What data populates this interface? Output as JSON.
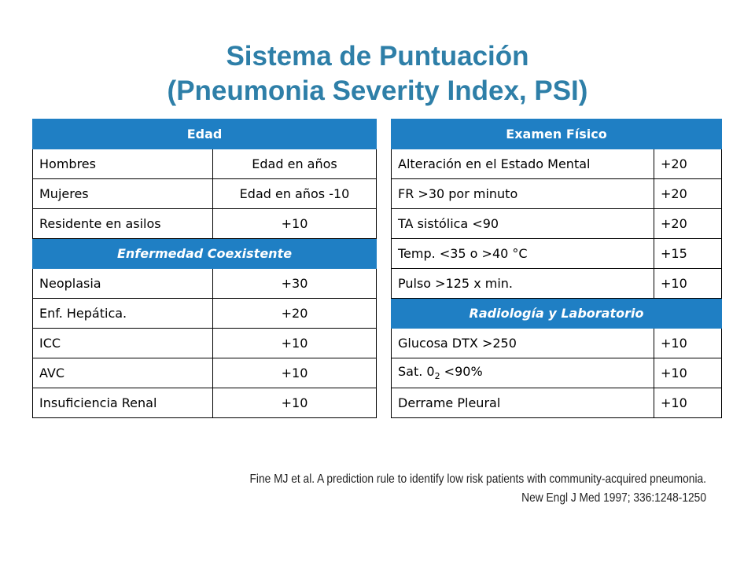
{
  "title": {
    "line1": "Sistema de Puntuación",
    "line2": "(Pneumonia Severity Index, PSI)"
  },
  "left_table": {
    "edad_header": "Edad",
    "edad_rows": [
      {
        "label": "Hombres",
        "value": "Edad en años"
      },
      {
        "label": "Mujeres",
        "value": "Edad en años -10"
      },
      {
        "label": "Residente en asilos",
        "value": "+10"
      }
    ],
    "coexist_header": "Enfermedad Coexistente",
    "coexist_rows": [
      {
        "label": "Neoplasia",
        "value": "+30"
      },
      {
        "label": "Enf. Hepática.",
        "value": "+20"
      },
      {
        "label": "ICC",
        "value": "+10"
      },
      {
        "label": "AVC",
        "value": "+10"
      },
      {
        "label": "Insuficiencia Renal",
        "value": "+10"
      }
    ]
  },
  "right_table": {
    "exam_header": "Examen Físico",
    "exam_rows": [
      {
        "label": "Alteración en el Estado Mental",
        "value": "+20"
      },
      {
        "label": "FR >30 por minuto",
        "value": "+20"
      },
      {
        "label": "TA sistólica <90",
        "value": "+20"
      },
      {
        "label": "Temp. <35 o >40 °C",
        "value": "+15"
      },
      {
        "label": "Pulso >125 x min.",
        "value": "+10"
      }
    ],
    "lab_header": "Radiología y Laboratorio",
    "lab_rows": [
      {
        "label": "Glucosa DTX >250",
        "value": "+10"
      },
      {
        "label_pre": "Sat. 0",
        "label_sub": "2",
        "label_post": " <90%",
        "value": "+10"
      },
      {
        "label": "Derrame Pleural",
        "value": "+10"
      }
    ]
  },
  "reference": {
    "line1": "Fine MJ et al. A prediction rule to identify low risk patients with community-acquired pneumonia.",
    "line2": "New Engl J Med 1997; 336:1248-1250"
  }
}
